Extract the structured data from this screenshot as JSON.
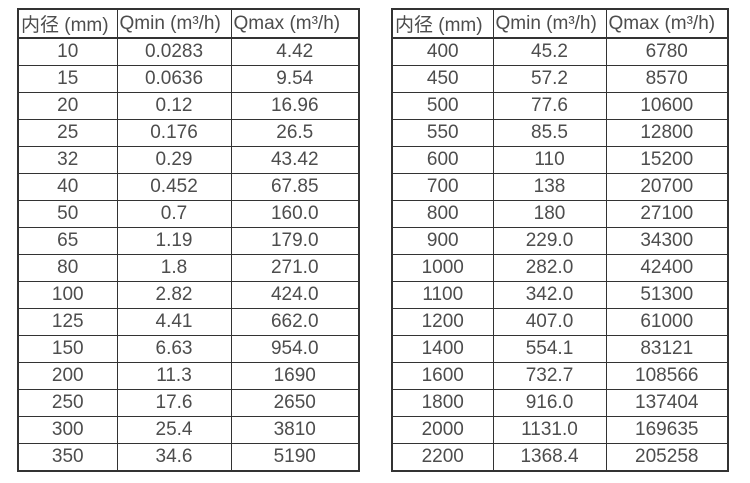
{
  "colors": {
    "background": "#ffffff",
    "border": "#333333",
    "text": "#4d4d4d"
  },
  "chart_data": [
    {
      "type": "table",
      "title": "",
      "headers": [
        "内径 (mm)",
        "Qmin (m³/h)",
        "Qmax (m³/h)"
      ],
      "rows": [
        [
          "10",
          "0.0283",
          "4.42"
        ],
        [
          "15",
          "0.0636",
          "9.54"
        ],
        [
          "20",
          "0.12",
          "16.96"
        ],
        [
          "25",
          "0.176",
          "26.5"
        ],
        [
          "32",
          "0.29",
          "43.42"
        ],
        [
          "40",
          "0.452",
          "67.85"
        ],
        [
          "50",
          "0.7",
          "160.0"
        ],
        [
          "65",
          "1.19",
          "179.0"
        ],
        [
          "80",
          "1.8",
          "271.0"
        ],
        [
          "100",
          "2.82",
          "424.0"
        ],
        [
          "125",
          "4.41",
          "662.0"
        ],
        [
          "150",
          "6.63",
          "954.0"
        ],
        [
          "200",
          "11.3",
          "1690"
        ],
        [
          "250",
          "17.6",
          "2650"
        ],
        [
          "300",
          "25.4",
          "3810"
        ],
        [
          "350",
          "34.6",
          "5190"
        ]
      ]
    },
    {
      "type": "table",
      "title": "",
      "headers": [
        "内径 (mm)",
        "Qmin (m³/h)",
        "Qmax (m³/h)"
      ],
      "rows": [
        [
          "400",
          "45.2",
          "6780"
        ],
        [
          "450",
          "57.2",
          "8570"
        ],
        [
          "500",
          "77.6",
          "10600"
        ],
        [
          "550",
          "85.5",
          "12800"
        ],
        [
          "600",
          "110",
          "15200"
        ],
        [
          "700",
          "138",
          "20700"
        ],
        [
          "800",
          "180",
          "27100"
        ],
        [
          "900",
          "229.0",
          "34300"
        ],
        [
          "1000",
          "282.0",
          "42400"
        ],
        [
          "1100",
          "342.0",
          "51300"
        ],
        [
          "1200",
          "407.0",
          "61000"
        ],
        [
          "1400",
          "554.1",
          "83121"
        ],
        [
          "1600",
          "732.7",
          "108566"
        ],
        [
          "1800",
          "916.0",
          "137404"
        ],
        [
          "2000",
          "1131.0",
          "169635"
        ],
        [
          "2200",
          "1368.4",
          "205258"
        ]
      ]
    }
  ]
}
